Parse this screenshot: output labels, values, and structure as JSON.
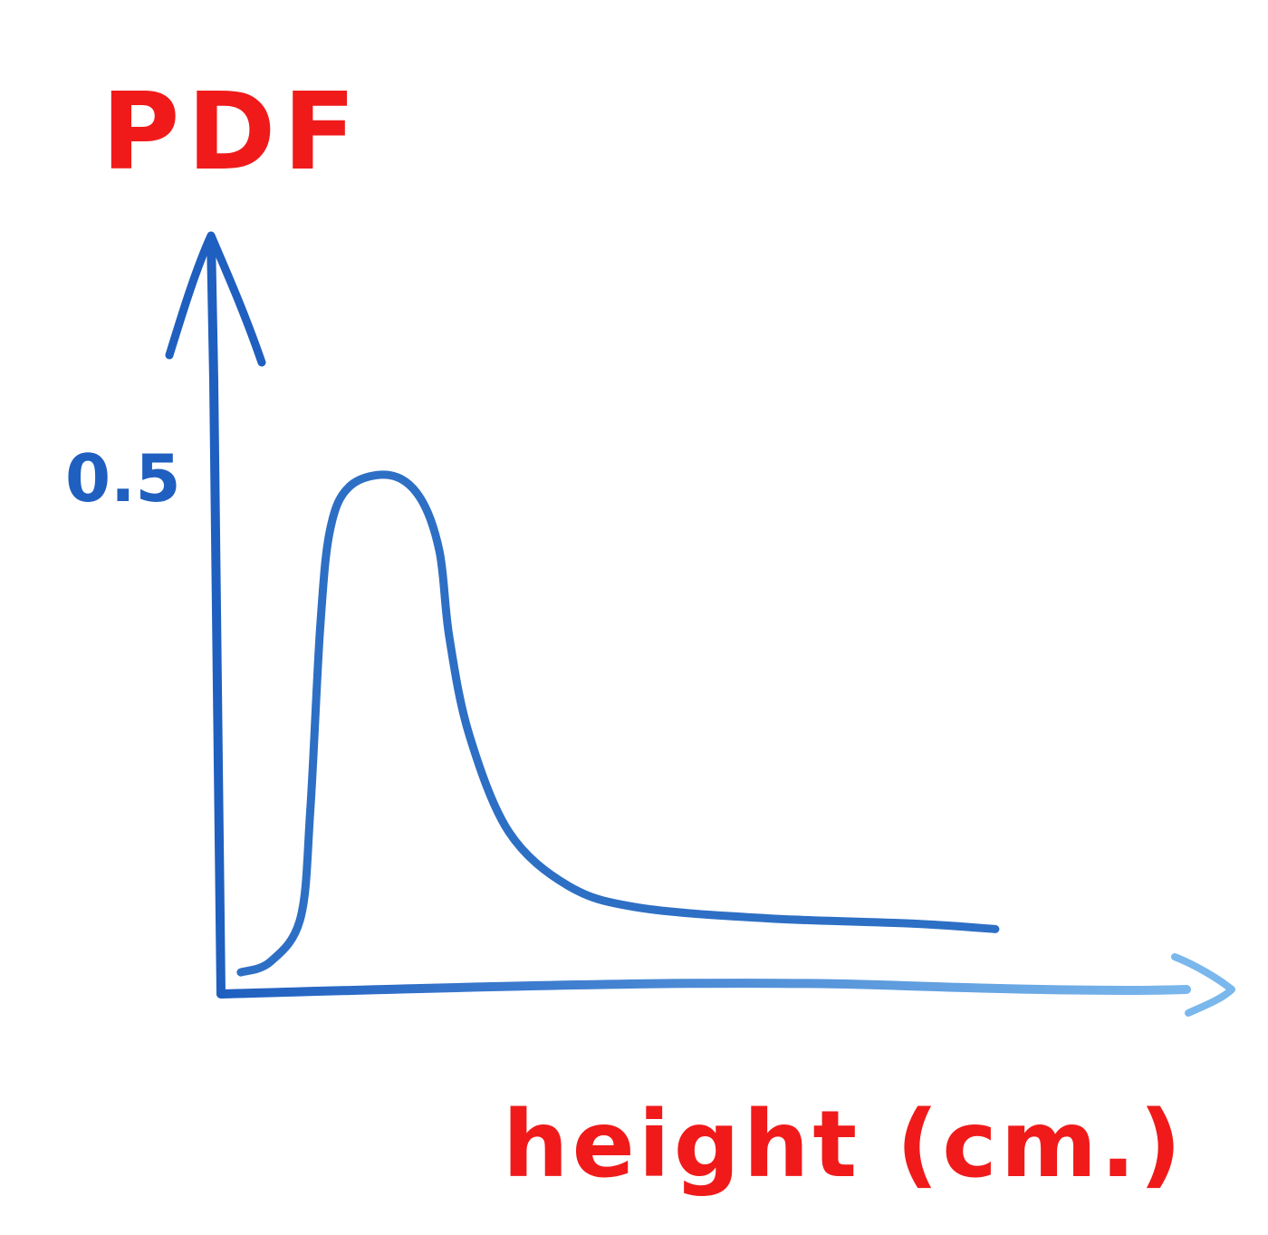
{
  "chart_data": {
    "type": "line",
    "title": "",
    "ylabel": "PDF",
    "xlabel": "height (cm.)",
    "y_ticks": [
      {
        "value": 0.5,
        "label": "0.5"
      }
    ],
    "ylim": [
      0,
      0.7
    ],
    "xlim": [
      0,
      1
    ],
    "grid": false,
    "legend": "none",
    "series": [
      {
        "values_description": "",
        "points": [
          [
            0.02,
            0.02
          ],
          [
            0.05,
            0.03
          ],
          [
            0.08,
            0.07
          ],
          [
            0.09,
            0.17
          ],
          [
            0.1,
            0.34
          ],
          [
            0.11,
            0.43
          ],
          [
            0.13,
            0.47
          ],
          [
            0.17,
            0.48
          ],
          [
            0.2,
            0.46
          ],
          [
            0.22,
            0.41
          ],
          [
            0.23,
            0.33
          ],
          [
            0.25,
            0.24
          ],
          [
            0.29,
            0.15
          ],
          [
            0.35,
            0.1
          ],
          [
            0.42,
            0.08
          ],
          [
            0.55,
            0.07
          ],
          [
            0.7,
            0.065
          ],
          [
            0.78,
            0.06
          ]
        ]
      }
    ],
    "colors": {
      "axis": "#1f5fbf",
      "axis_light": "#7ab7ec",
      "curve": "#2d6fc4",
      "tick_label": "#1f5fbf",
      "axis_label": "#f01a1a"
    }
  }
}
